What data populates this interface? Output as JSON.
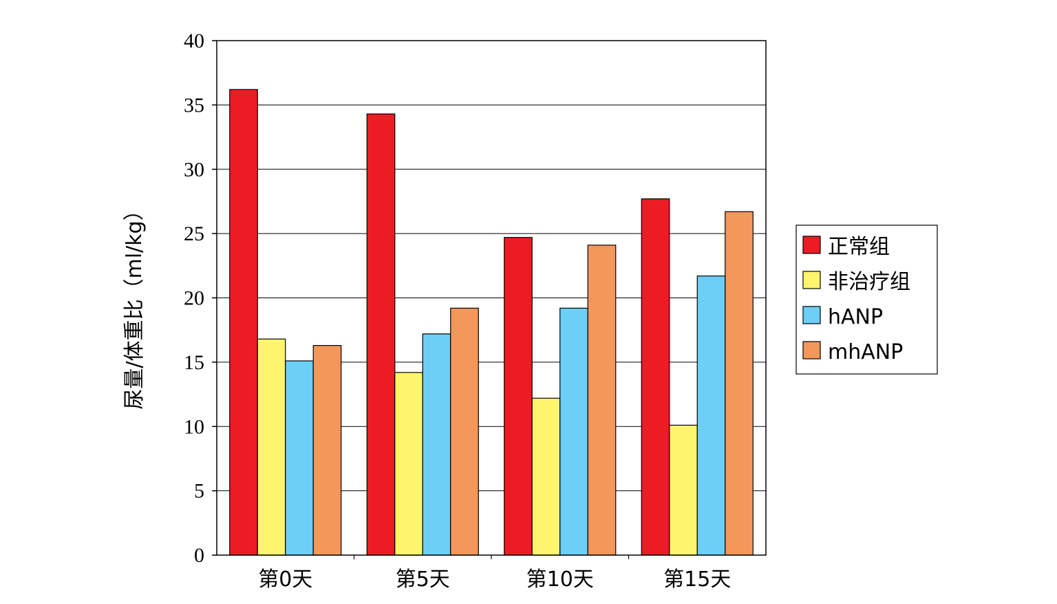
{
  "chart_data": {
    "type": "bar",
    "title": "",
    "xlabel": "",
    "ylabel": "尿量/体重比（ml/kg）",
    "ylim": [
      0,
      40
    ],
    "yticks": [
      0,
      5,
      10,
      15,
      20,
      25,
      30,
      35,
      40
    ],
    "grid": true,
    "legend_position": "right",
    "categories": [
      "第0天",
      "第5天",
      "第10天",
      "第15天"
    ],
    "series": [
      {
        "name": "正常组",
        "color": "#ED1C24",
        "values": [
          36.2,
          34.3,
          24.7,
          27.7
        ]
      },
      {
        "name": "非治疗组",
        "color": "#FFF46E",
        "values": [
          16.8,
          14.2,
          12.2,
          10.1
        ]
      },
      {
        "name": "hANP",
        "color": "#6CCFF6",
        "values": [
          15.1,
          17.2,
          19.2,
          21.7
        ]
      },
      {
        "name": "mhANP",
        "color": "#F4975A",
        "values": [
          16.3,
          19.2,
          24.1,
          26.7
        ]
      }
    ]
  }
}
